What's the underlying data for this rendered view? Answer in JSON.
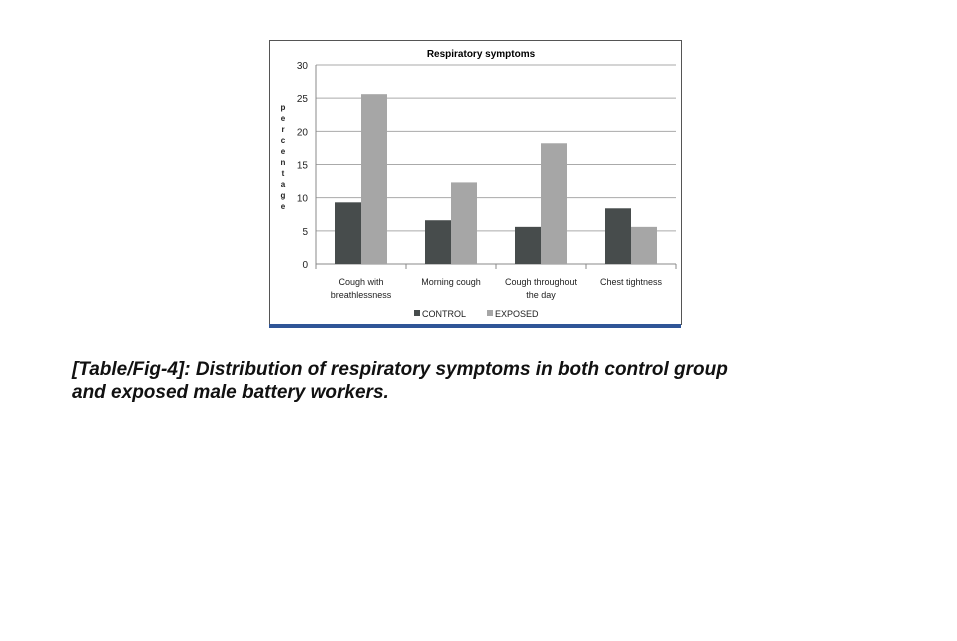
{
  "chart_data": {
    "type": "bar",
    "title": "Respiratory symptoms",
    "ylabel": "percentage",
    "xlabel": "",
    "ylim": [
      0,
      30
    ],
    "yticks": [
      0,
      5,
      10,
      15,
      20,
      25,
      30
    ],
    "grid": true,
    "legend_position": "bottom",
    "categories": [
      [
        "Cough with",
        "breathlessness"
      ],
      [
        "Morning cough"
      ],
      [
        "Cough throughout",
        "the day"
      ],
      [
        "Chest tightness"
      ]
    ],
    "series": [
      {
        "name": "CONTROL",
        "color": "#474c4c",
        "values": [
          9.3,
          6.6,
          5.6,
          8.4
        ]
      },
      {
        "name": "EXPOSED",
        "color": "#a6a6a6",
        "values": [
          25.6,
          12.3,
          18.2,
          5.6
        ]
      }
    ]
  },
  "caption": {
    "line1": "[Table/Fig-4]: Distribution of respiratory symptoms in both control group",
    "line2": "and exposed male battery workers."
  }
}
